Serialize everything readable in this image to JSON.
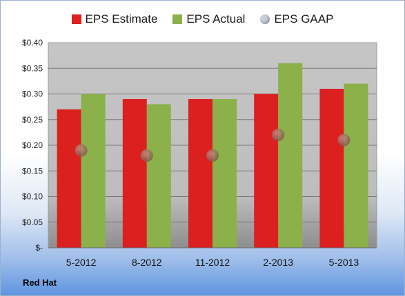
{
  "company": "Red Hat",
  "chart_data": {
    "type": "bar",
    "categories": [
      "5-2012",
      "8-2012",
      "11-2012",
      "2-2013",
      "5-2013"
    ],
    "series": [
      {
        "name": "EPS Estimate",
        "values": [
          0.27,
          0.29,
          0.29,
          0.3,
          0.31
        ],
        "color": "#dc1f1f",
        "mark": "bar"
      },
      {
        "name": "EPS Actual",
        "values": [
          0.3,
          0.28,
          0.29,
          0.36,
          0.32
        ],
        "color": "#8cb04a",
        "mark": "bar"
      },
      {
        "name": "EPS GAAP",
        "values": [
          0.19,
          0.18,
          0.18,
          0.22,
          0.21
        ],
        "color": "#9a6a5e",
        "mark": "dot"
      }
    ],
    "yticks": [
      {
        "value": 0.4,
        "label": "$0.40"
      },
      {
        "value": 0.35,
        "label": "$0.35"
      },
      {
        "value": 0.3,
        "label": "$0.30"
      },
      {
        "value": 0.25,
        "label": "$0.25"
      },
      {
        "value": 0.2,
        "label": "$0.20"
      },
      {
        "value": 0.15,
        "label": "$0.15"
      },
      {
        "value": 0.1,
        "label": "$0.10"
      },
      {
        "value": 0.05,
        "label": "$0.05"
      },
      {
        "value": 0.0,
        "label": "$-"
      }
    ],
    "ylim": [
      0,
      0.4
    ],
    "grid": true,
    "legend_position": "top",
    "legend_gaap_swatch": "#c7ced8",
    "plot_background": "#c0c0c0"
  }
}
